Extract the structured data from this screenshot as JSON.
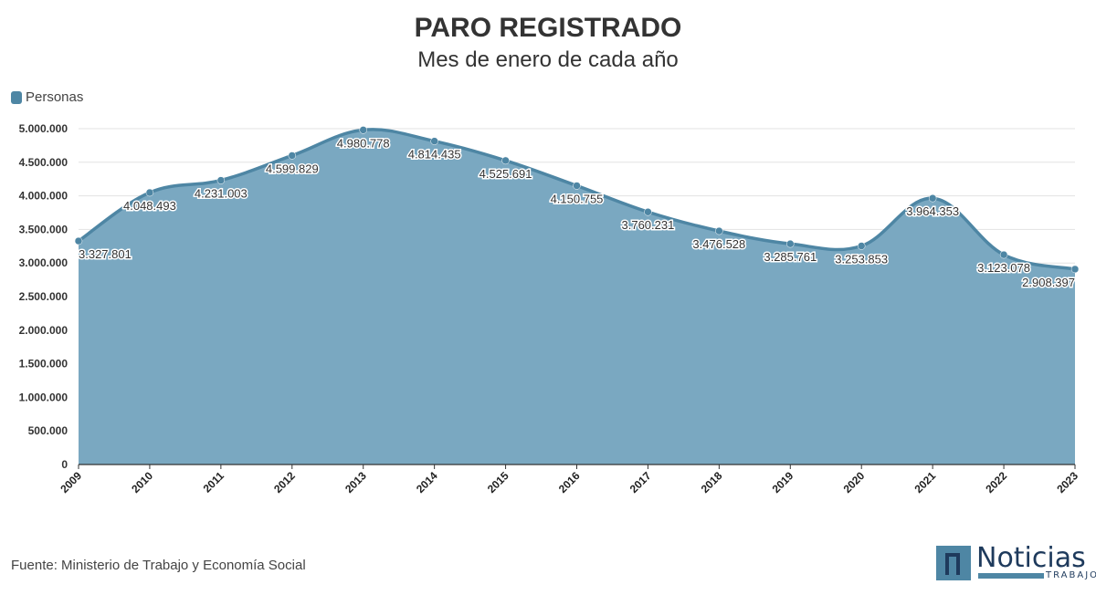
{
  "legend": {
    "label": "Personas"
  },
  "source": "Fuente: Ministerio de Trabajo y Economía Social",
  "logo": {
    "word": "Noticias",
    "sub": "TRABAJO"
  },
  "colors": {
    "area": "#7aa8c1",
    "line": "#4e86a4",
    "point": "#4e86a4"
  },
  "chart_data": {
    "type": "area",
    "title": "PARO REGISTRADO",
    "subtitle": "Mes de enero de cada año",
    "xlabel": "",
    "ylabel": "",
    "x": [
      "2009",
      "2010",
      "2011",
      "2012",
      "2013",
      "2014",
      "2015",
      "2016",
      "2017",
      "2018",
      "2019",
      "2020",
      "2021",
      "2022",
      "2023"
    ],
    "series": [
      {
        "name": "Personas",
        "values": [
          3327801,
          4048493,
          4231003,
          4599829,
          4980778,
          4814435,
          4525691,
          4150755,
          3760231,
          3476528,
          3285761,
          3253853,
          3964353,
          3123078,
          2908397
        ],
        "labels": [
          "3.327.801",
          "4.048.493",
          "4.231.003",
          "4.599.829",
          "4.980.778",
          "4.814.435",
          "4.525.691",
          "4.150.755",
          "3.760.231",
          "3.476.528",
          "3.285.761",
          "3.253.853",
          "3.964.353",
          "3.123.078",
          "2.908.397"
        ]
      }
    ],
    "yticks": [
      "0",
      "500.000",
      "1.000.000",
      "1.500.000",
      "2.000.000",
      "2.500.000",
      "3.000.000",
      "3.500.000",
      "4.000.000",
      "4.500.000",
      "5.000.000"
    ],
    "ylim": [
      0,
      5000000
    ],
    "grid": true,
    "legend_position": "top-left"
  }
}
